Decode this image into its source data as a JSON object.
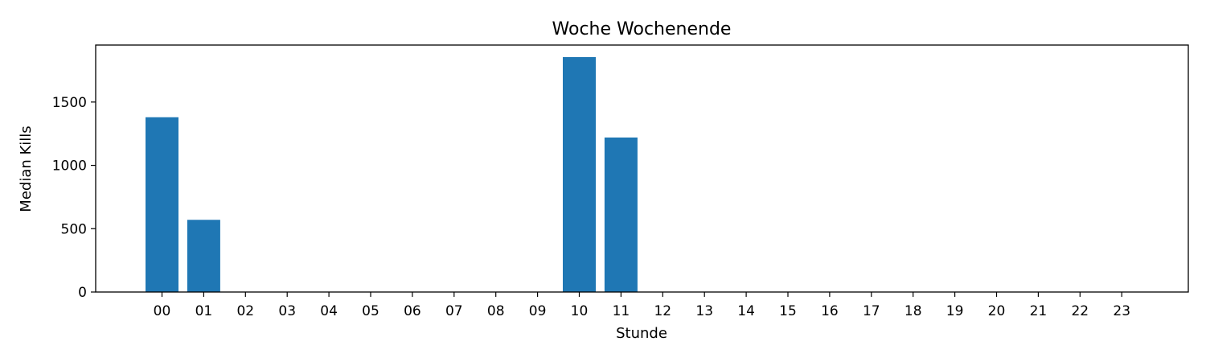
{
  "chart_data": {
    "type": "bar",
    "title": "Woche Wochenende",
    "xlabel": "Stunde",
    "ylabel": "Median Kills",
    "categories": [
      "00",
      "01",
      "02",
      "03",
      "04",
      "05",
      "06",
      "07",
      "08",
      "09",
      "10",
      "11",
      "12",
      "13",
      "14",
      "15",
      "16",
      "17",
      "18",
      "19",
      "20",
      "21",
      "22",
      "23"
    ],
    "values": [
      1380,
      570,
      0,
      0,
      0,
      0,
      0,
      0,
      0,
      0,
      1855,
      1220,
      0,
      0,
      0,
      0,
      0,
      0,
      0,
      0,
      0,
      0,
      0,
      0
    ],
    "ylim": [
      0,
      1950
    ],
    "yticks": [
      0,
      500,
      1000,
      1500
    ],
    "grid": false,
    "bar_color": "#1f77b4"
  }
}
